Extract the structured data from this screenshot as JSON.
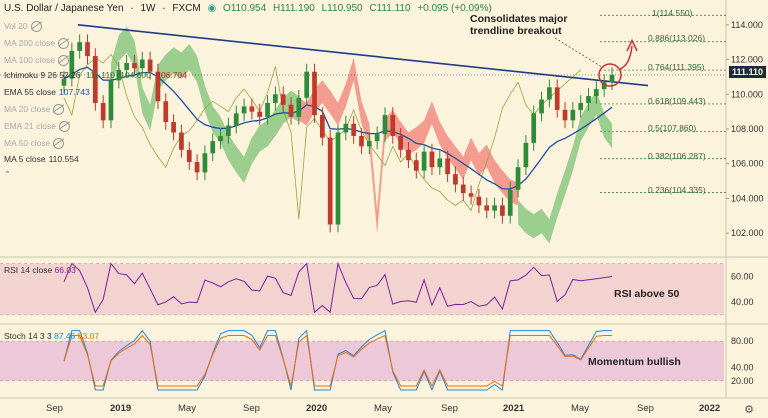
{
  "header": {
    "symbol": "U.S. Dollar / Japanese Yen",
    "interval": "1W",
    "exchange": "FXCM",
    "open": "O110.954",
    "high": "H111.190",
    "low": "L110.950",
    "close": "C111.110",
    "change": "+0.095 (+0.09%)"
  },
  "legend": {
    "vol": "Vol 20",
    "ma200": "MA 200 close",
    "ma100": "MA 100 close",
    "ichimoku": "Ichimoku 9 26 52 26",
    "ichimoku_vals": [
      "111.110",
      "104.600",
      "106.704"
    ],
    "ema55": "EMA 55 close",
    "ema55_val": "107.743",
    "ma20": "MA 20 close",
    "ema21": "EMA 21 close",
    "ma50": "MA 50 close",
    "ma5": "MA 5 close",
    "ma5_val": "110.554"
  },
  "price_label": "111.110",
  "fib_levels": [
    {
      "label": "1(114.550)",
      "value": 114.55
    },
    {
      "label": "0.886(113.026)",
      "value": 113.026
    },
    {
      "label": "0.764(111.395)",
      "value": 111.395
    },
    {
      "label": "0.618(109.443)",
      "value": 109.443
    },
    {
      "label": "0.5(107.860)",
      "value": 107.86
    },
    {
      "label": "0.382(106.287)",
      "value": 106.287
    },
    {
      "label": "0.236(104.335)",
      "value": 104.335
    }
  ],
  "annotations": {
    "breakout": "Consolidates major trendline breakout",
    "rsi": "RSI above 50",
    "stoch": "Momentum bullish"
  },
  "rsi": {
    "title": "RSI 14 close",
    "value": "66.03"
  },
  "stoch": {
    "title": "Stoch 14 3 3",
    "k": "87.45",
    "d": "83.07"
  },
  "colors": {
    "background": "#fbf3dc",
    "up": "#2e8b3a",
    "down": "#c0392b",
    "trendline": "#1f3a8a",
    "ema55": "#1f4fa3",
    "cloud_bull": "#4caf50",
    "cloud_bear": "#ef5350",
    "fib": "#2d6a3a",
    "rsi_band": "#f2d3d0",
    "stoch_band": "#ecc8d8"
  },
  "chart_data": {
    "type": "candlestick",
    "title": "U.S. Dollar / Japanese Yen 1W FXCM",
    "x_tick_labels": [
      "Sep",
      "2019",
      "May",
      "Sep",
      "2020",
      "May",
      "Sep",
      "2021",
      "May",
      "Sep",
      "2022"
    ],
    "bold_ticks": [
      "2019",
      "2020",
      "2021",
      "2022"
    ],
    "y_tick_labels": [
      "114.000",
      "112.000",
      "110.000",
      "108.000",
      "106.000",
      "104.000",
      "102.000"
    ],
    "ylim": [
      100.8,
      115.2
    ],
    "trendline": {
      "start": {
        "x": 2018.85,
        "y": 114.0
      },
      "end": {
        "x": 2021.65,
        "y": 110.5
      }
    },
    "close_series": [
      110.9,
      112.5,
      113.0,
      112.2,
      109.5,
      108.5,
      110.8,
      111.4,
      111.8,
      111.5,
      112.0,
      111.3,
      109.6,
      108.4,
      107.8,
      106.8,
      106.1,
      105.5,
      106.6,
      107.3,
      107.6,
      108.2,
      108.9,
      109.3,
      109.0,
      108.7,
      109.5,
      110.0,
      109.4,
      108.7,
      109.8,
      111.3,
      108.8,
      107.5,
      102.5,
      107.8,
      108.3,
      107.6,
      107.0,
      107.3,
      107.7,
      108.8,
      107.6,
      106.8,
      106.2,
      105.6,
      106.7,
      105.8,
      106.3,
      105.4,
      104.8,
      104.3,
      104.1,
      103.6,
      103.3,
      103.6,
      103.0,
      104.5,
      105.8,
      107.2,
      108.9,
      109.7,
      110.4,
      109.1,
      108.5,
      109.1,
      109.5,
      109.9,
      110.3,
      110.7,
      111.11
    ]
  },
  "rsi_data": {
    "ylim": [
      26,
      72
    ],
    "ticks": [
      "60.00",
      "40.00"
    ],
    "band": [
      30,
      70
    ]
  },
  "stoch_data": {
    "ylim": [
      0,
      100
    ],
    "ticks": [
      "80.00",
      "40.00",
      "20.00"
    ],
    "band": [
      20,
      80
    ]
  },
  "x_axis_labels": [
    "Sep",
    "2019",
    "May",
    "Sep",
    "2020",
    "May",
    "Sep",
    "2021",
    "May",
    "Sep",
    "2022"
  ]
}
